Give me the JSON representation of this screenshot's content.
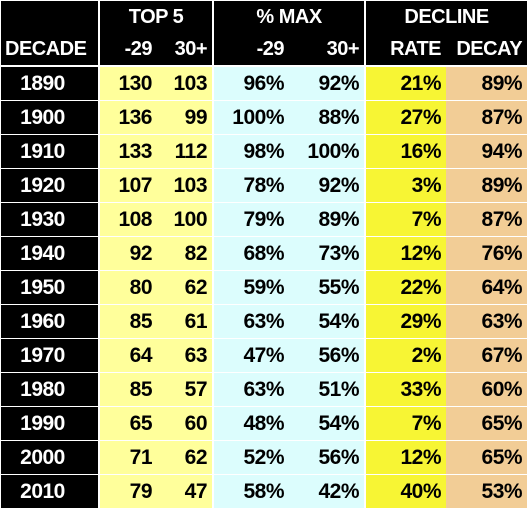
{
  "headers": {
    "groups": [
      "",
      "TOP 5",
      "% MAX",
      "DECLINE"
    ],
    "columns": [
      "DECADE",
      "-29",
      "30+",
      "-29",
      "30+",
      "RATE",
      "DECAY"
    ]
  },
  "rows": [
    [
      "1890",
      "130",
      "103",
      "96%",
      "92%",
      "21%",
      "89%"
    ],
    [
      "1900",
      "136",
      "99",
      "100%",
      "88%",
      "27%",
      "87%"
    ],
    [
      "1910",
      "133",
      "112",
      "98%",
      "100%",
      "16%",
      "94%"
    ],
    [
      "1920",
      "107",
      "103",
      "78%",
      "92%",
      "3%",
      "89%"
    ],
    [
      "1930",
      "108",
      "100",
      "79%",
      "89%",
      "7%",
      "87%"
    ],
    [
      "1940",
      "92",
      "82",
      "68%",
      "73%",
      "12%",
      "76%"
    ],
    [
      "1950",
      "80",
      "62",
      "59%",
      "55%",
      "22%",
      "64%"
    ],
    [
      "1960",
      "85",
      "61",
      "63%",
      "54%",
      "29%",
      "63%"
    ],
    [
      "1970",
      "64",
      "63",
      "47%",
      "56%",
      "2%",
      "67%"
    ],
    [
      "1980",
      "85",
      "57",
      "63%",
      "51%",
      "33%",
      "60%"
    ],
    [
      "1990",
      "65",
      "60",
      "48%",
      "54%",
      "7%",
      "65%"
    ],
    [
      "2000",
      "71",
      "62",
      "52%",
      "56%",
      "12%",
      "65%"
    ],
    [
      "2010",
      "79",
      "47",
      "58%",
      "42%",
      "40%",
      "53%"
    ]
  ],
  "colors": {
    "header_bg": "#000000",
    "top5_bg": "#ffff9b",
    "pct_max_bg": "#dcfdfd",
    "rate_bg": "#f7f534",
    "decay_bg": "#f2cd96"
  }
}
